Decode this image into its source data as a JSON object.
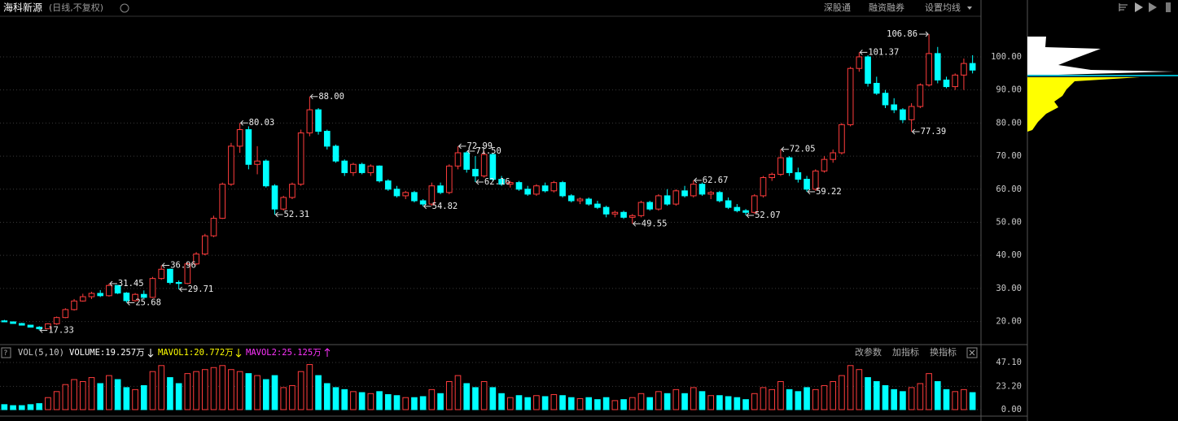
{
  "header": {
    "stock_name": "海科新源",
    "period": "(日线,不复权)",
    "menu": [
      "深股通",
      "融资融券",
      "设置均线"
    ]
  },
  "chart_data": {
    "type": "candlestick",
    "up_color": "#ff3c3c",
    "down_color": "#00ffff",
    "ylim": [
      14,
      108
    ],
    "yticks": [
      {
        "value": 20,
        "label": "20.00"
      },
      {
        "value": 30,
        "label": "30.00"
      },
      {
        "value": 40,
        "label": "40.00"
      },
      {
        "value": 50,
        "label": "50.00"
      },
      {
        "value": 60,
        "label": "60.00"
      },
      {
        "value": 70,
        "label": "70.00"
      },
      {
        "value": 80,
        "label": "80.00"
      },
      {
        "value": 90,
        "label": "90.00"
      },
      {
        "value": 100,
        "label": "100.00"
      }
    ],
    "grid": true,
    "open": [
      20.2,
      19.9,
      19.4,
      18.9,
      18.3,
      17.8,
      19.3,
      21.2,
      23.6,
      26.2,
      27.5,
      28.5,
      27.8,
      30.9,
      28.6,
      26.3,
      28.2,
      27.3,
      33.0,
      35.8,
      31.8,
      31.5,
      37.4,
      40.4,
      45.9,
      51.2,
      61.5,
      73.0,
      78.0,
      67.5,
      68.5,
      61.0,
      54.0,
      57.5,
      61.5,
      77.0,
      84.0,
      77.5,
      73.0,
      68.5,
      65.0,
      67.5,
      65.0,
      67.0,
      62.5,
      60.0,
      58.0,
      59.0,
      56.5,
      55.5,
      61.0,
      59.0,
      67.0,
      71.0,
      66.0,
      64.0,
      70.5,
      63.0,
      61.5,
      62.0,
      60.0,
      58.5,
      61.0,
      59.5,
      62.0,
      58.0,
      56.5,
      57.0,
      55.5,
      54.5,
      52.5,
      53.0,
      51.5,
      52.0,
      56.0,
      54.0,
      58.0,
      55.5,
      59.5,
      58.0,
      61.5,
      58.5,
      59.0,
      56.5,
      54.5,
      53.5,
      53.0,
      58.0,
      63.5,
      64.5,
      69.5,
      65.0,
      63.0,
      60.0,
      65.5,
      69.0,
      71.0,
      79.5,
      96.5,
      100.0,
      92.0,
      89.0,
      85.5,
      84.0,
      81.0,
      85.0,
      91.5,
      101.0,
      93.0,
      91.0,
      94.5,
      98.0
    ],
    "high": [
      20.5,
      20.0,
      19.6,
      19.0,
      18.6,
      19.5,
      21.5,
      24.0,
      26.8,
      28.4,
      29.0,
      29.5,
      31.45,
      31.0,
      28.9,
      28.6,
      29.4,
      33.5,
      36.96,
      36.0,
      32.4,
      37.8,
      41.0,
      46.5,
      52.0,
      62.0,
      74.0,
      80.03,
      79.0,
      73.0,
      69.0,
      61.5,
      58.0,
      62.0,
      78.0,
      88.0,
      84.5,
      78.0,
      73.5,
      69.0,
      68.0,
      68.0,
      67.5,
      67.2,
      63.0,
      61.0,
      59.5,
      59.5,
      57.0,
      62.0,
      62.0,
      67.5,
      72.99,
      71.5,
      70.0,
      71.5,
      71.0,
      64.0,
      62.5,
      62.5,
      61.0,
      61.5,
      62.0,
      62.5,
      62.5,
      58.5,
      57.5,
      57.5,
      56.5,
      55.0,
      53.5,
      53.5,
      52.5,
      56.5,
      56.5,
      58.5,
      60.0,
      60.0,
      61.0,
      62.67,
      62.0,
      59.5,
      59.5,
      57.5,
      55.5,
      54.0,
      58.5,
      64.0,
      65.0,
      72.05,
      70.0,
      66.5,
      64.0,
      66.0,
      70.0,
      72.0,
      80.0,
      97.0,
      101.37,
      100.5,
      94.0,
      90.0,
      87.5,
      84.5,
      86.0,
      92.0,
      106.86,
      103.0,
      94.0,
      95.0,
      99.5,
      100.5
    ],
    "low": [
      19.8,
      19.3,
      18.8,
      18.2,
      17.33,
      17.7,
      19.0,
      21.0,
      23.3,
      26.0,
      26.8,
      27.4,
      27.5,
      28.3,
      25.68,
      26.0,
      27.0,
      27.1,
      32.6,
      31.2,
      29.71,
      31.3,
      37.0,
      40.0,
      45.5,
      51.0,
      61.0,
      71.0,
      66.0,
      64.5,
      60.5,
      52.31,
      53.5,
      57.0,
      61.0,
      76.0,
      76.5,
      72.0,
      68.0,
      64.0,
      64.0,
      64.5,
      64.0,
      62.0,
      59.5,
      57.5,
      57.0,
      56.0,
      54.82,
      55.0,
      58.5,
      58.5,
      66.0,
      65.0,
      62.16,
      63.5,
      62.5,
      61.0,
      60.5,
      59.5,
      58.0,
      58.0,
      59.0,
      59.0,
      57.5,
      56.0,
      55.5,
      55.0,
      54.0,
      51.5,
      51.5,
      51.0,
      49.55,
      51.5,
      53.5,
      53.5,
      55.0,
      55.0,
      57.5,
      57.5,
      58.0,
      57.0,
      56.0,
      54.0,
      53.0,
      52.07,
      52.5,
      57.5,
      62.5,
      64.0,
      64.0,
      62.0,
      59.22,
      59.5,
      65.0,
      68.0,
      70.5,
      79.0,
      95.5,
      91.0,
      88.5,
      84.5,
      83.0,
      80.0,
      77.39,
      84.5,
      91.0,
      92.0,
      90.5,
      90.0,
      90.0,
      95.0
    ],
    "close": [
      19.9,
      19.4,
      18.9,
      18.3,
      17.8,
      19.3,
      21.2,
      23.6,
      26.2,
      27.5,
      28.5,
      27.8,
      30.9,
      28.6,
      26.3,
      28.2,
      27.3,
      33.0,
      35.8,
      31.8,
      31.5,
      37.4,
      40.4,
      45.9,
      51.2,
      61.5,
      73.0,
      78.0,
      67.5,
      68.5,
      61.0,
      54.0,
      57.5,
      61.5,
      77.0,
      84.0,
      77.5,
      73.0,
      68.5,
      65.0,
      67.5,
      65.0,
      67.0,
      62.5,
      60.0,
      58.0,
      59.0,
      56.5,
      55.5,
      61.0,
      59.0,
      67.0,
      71.0,
      66.0,
      64.0,
      70.5,
      63.0,
      61.5,
      62.0,
      60.0,
      58.5,
      61.0,
      59.5,
      62.0,
      58.0,
      56.5,
      57.0,
      55.5,
      54.5,
      52.5,
      53.0,
      51.5,
      52.0,
      56.0,
      54.0,
      58.0,
      55.5,
      59.5,
      58.0,
      61.5,
      58.5,
      59.0,
      56.5,
      54.5,
      53.5,
      53.0,
      58.0,
      63.5,
      64.5,
      69.5,
      65.0,
      63.0,
      60.0,
      65.5,
      69.0,
      71.0,
      79.5,
      96.5,
      100.0,
      92.0,
      89.0,
      85.5,
      84.0,
      81.0,
      85.0,
      91.5,
      101.0,
      93.0,
      91.0,
      94.5,
      98.0,
      96.0
    ],
    "volume": [
      5,
      4,
      4,
      5,
      6,
      12,
      18,
      25,
      30,
      28,
      32,
      26,
      34,
      30,
      22,
      20,
      24,
      38,
      44,
      32,
      26,
      36,
      38,
      40,
      42,
      44,
      40,
      38,
      36,
      34,
      30,
      34,
      22,
      24,
      38,
      45,
      34,
      26,
      22,
      20,
      18,
      17,
      16,
      18,
      15,
      14,
      12,
      12,
      13,
      20,
      16,
      28,
      34,
      26,
      22,
      28,
      22,
      16,
      12,
      14,
      12,
      14,
      13,
      15,
      14,
      12,
      11,
      12,
      10,
      12,
      9,
      10,
      12,
      16,
      12,
      18,
      16,
      20,
      16,
      22,
      18,
      14,
      14,
      13,
      12,
      10,
      16,
      22,
      20,
      28,
      20,
      18,
      22,
      20,
      24,
      28,
      34,
      44,
      40,
      32,
      28,
      24,
      20,
      18,
      22,
      26,
      36,
      28,
      20,
      18,
      20,
      17
    ],
    "vylim": [
      0,
      50
    ],
    "vyticks": [
      {
        "value": 0,
        "label": "0.00"
      },
      {
        "value": 23.2,
        "label": "23.20"
      },
      {
        "value": 47.1,
        "label": "47.10"
      }
    ],
    "annotations": [
      {
        "value": 17.33,
        "label": "17.33"
      },
      {
        "value": 31.45,
        "label": "31.45"
      },
      {
        "value": 25.68,
        "label": "25.68"
      },
      {
        "value": 36.96,
        "label": "36.96"
      },
      {
        "value": 29.71,
        "label": "29.71"
      },
      {
        "value": 80.03,
        "label": "80.03"
      },
      {
        "value": 52.31,
        "label": "52.31"
      },
      {
        "value": 88,
        "label": "88.00"
      },
      {
        "value": 54.82,
        "label": "54.82"
      },
      {
        "value": 72.99,
        "label": "72.99"
      },
      {
        "value": 62.16,
        "label": "62.16"
      },
      {
        "value": 71.5,
        "label": "71.50"
      },
      {
        "value": 49.55,
        "label": "49.55"
      },
      {
        "value": 62.67,
        "label": "62.67"
      },
      {
        "value": 52.07,
        "label": "52.07"
      },
      {
        "value": 72.05,
        "label": "72.05"
      },
      {
        "value": 59.22,
        "label": "59.22"
      },
      {
        "value": 101.37,
        "label": "101.37"
      },
      {
        "value": 106.86,
        "label": "106.86"
      },
      {
        "value": 77.39,
        "label": "77.39"
      }
    ]
  },
  "volume_header": {
    "indicator": "VOL(5,10)",
    "volume": "VOLUME:19.257万",
    "mavol1": "MAVOL1:20.772万",
    "mavol2": "MAVOL2:25.125万",
    "buttons": [
      "改参数",
      "加指标",
      "换指标"
    ]
  }
}
